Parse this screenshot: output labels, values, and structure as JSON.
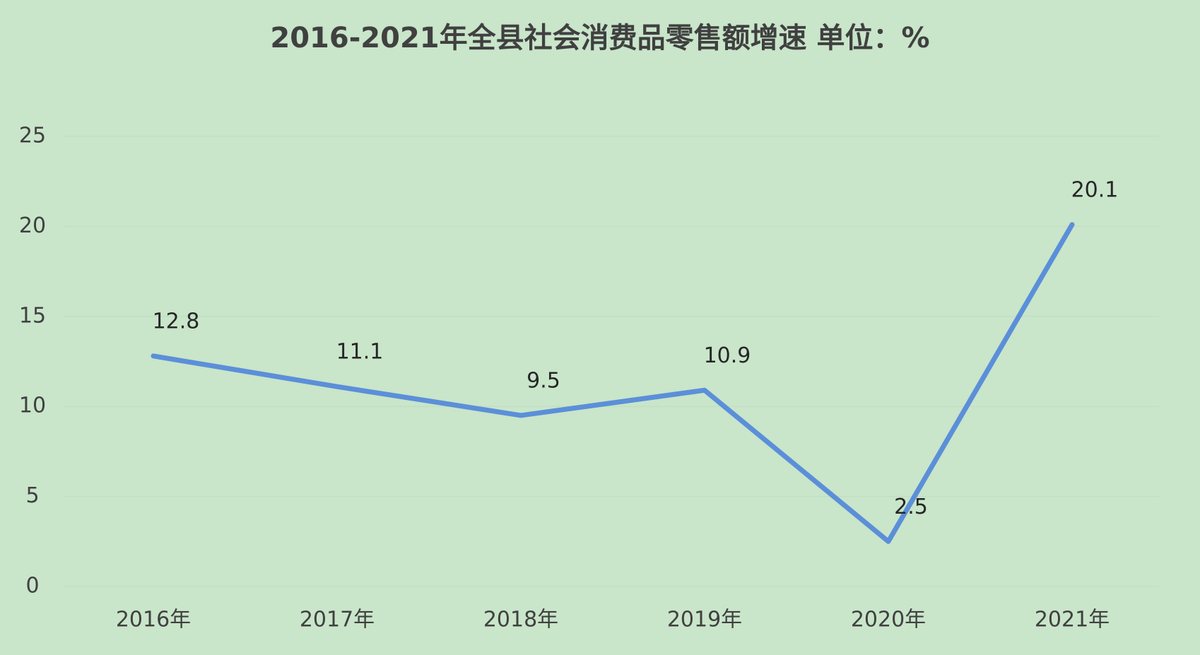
{
  "chart_data": {
    "type": "line",
    "title": "2016-2021年全县社会消费品零售额增速  单位：%",
    "categories": [
      "2016年",
      "2017年",
      "2018年",
      "2019年",
      "2020年",
      "2021年"
    ],
    "series": [
      {
        "color": "#5b8fd9",
        "values": [
          12.8,
          11.1,
          9.5,
          10.9,
          2.5,
          20.1
        ]
      }
    ],
    "ylim": [
      0,
      25
    ],
    "yticks": [
      0,
      5,
      10,
      15,
      20,
      25
    ],
    "grid": true
  }
}
